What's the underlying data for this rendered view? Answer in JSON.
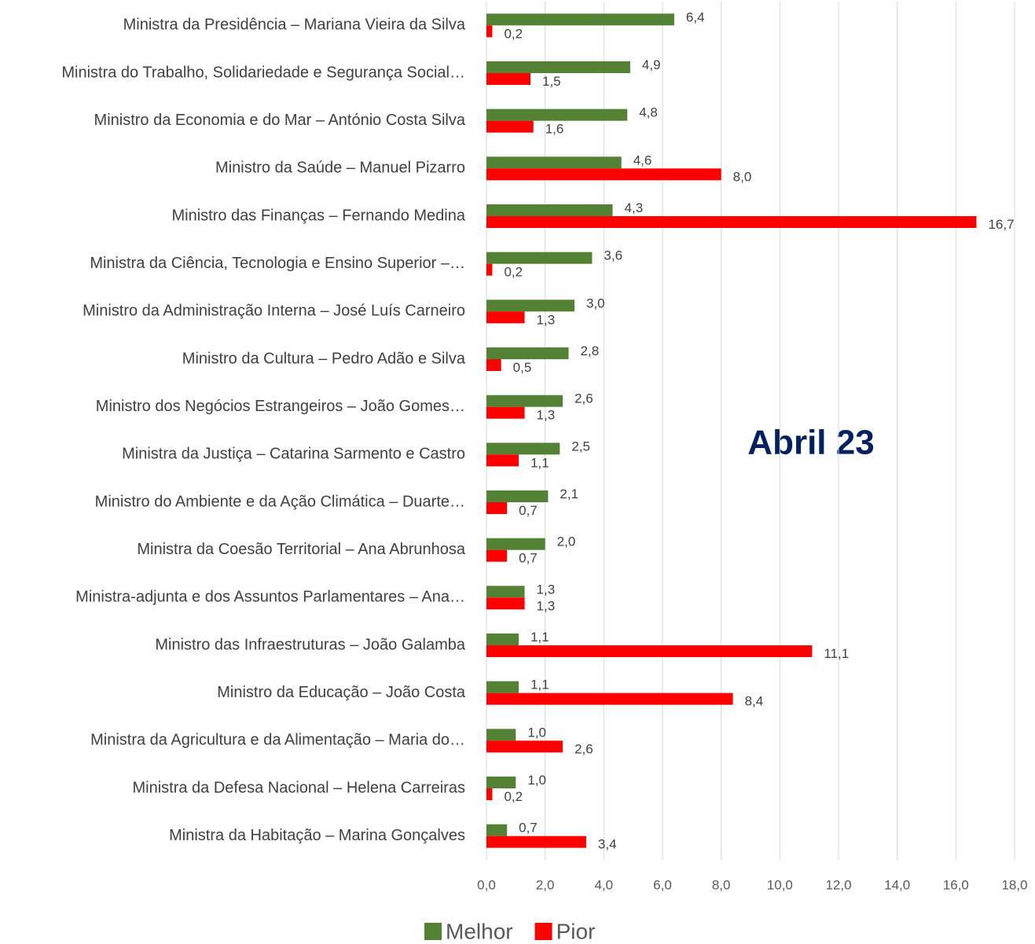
{
  "chart_data": {
    "type": "barh",
    "annotation": "Abril 23",
    "categories": [
      "Ministra da Presidência – Mariana Vieira da Silva",
      "Ministra do Trabalho, Solidariedade e Segurança Social…",
      "Ministro da Economia e do Mar – António Costa Silva",
      "Ministro da Saúde – Manuel Pizarro",
      "Ministro das Finanças – Fernando Medina",
      "Ministra da Ciência, Tecnologia e Ensino Superior –…",
      "Ministro da Administração Interna – José Luís Carneiro",
      "Ministro da Cultura – Pedro Adão e Silva",
      "Ministro dos Negócios Estrangeiros – João Gomes…",
      "Ministra da Justiça – Catarina Sarmento e Castro",
      "Ministro do Ambiente e da Ação Climática – Duarte…",
      "Ministra da Coesão Territorial – Ana Abrunhosa",
      "Ministra-adjunta e dos Assuntos Parlamentares – Ana…",
      "Ministro das Infraestruturas – João Galamba",
      "Ministro da Educação – João Costa",
      "Ministra da Agricultura e da Alimentação – Maria do…",
      "Ministra da Defesa Nacional – Helena Carreiras",
      "Ministra da Habitação – Marina Gonçalves"
    ],
    "series": [
      {
        "name": "Melhor",
        "color": "#548235",
        "values": [
          6.4,
          4.9,
          4.8,
          4.6,
          4.3,
          3.6,
          3.0,
          2.8,
          2.6,
          2.5,
          2.1,
          2.0,
          1.3,
          1.1,
          1.1,
          1.0,
          1.0,
          0.7
        ],
        "value_labels": [
          "6,4",
          "4,9",
          "4,8",
          "4,6",
          "4,3",
          "3,6",
          "3,0",
          "2,8",
          "2,6",
          "2,5",
          "2,1",
          "2,0",
          "1,3",
          "1,1",
          "1,1",
          "1,0",
          "1,0",
          "0,7"
        ]
      },
      {
        "name": "Pior",
        "color": "#ff0000",
        "values": [
          0.2,
          1.5,
          1.6,
          8.0,
          16.7,
          0.2,
          1.3,
          0.5,
          1.3,
          1.1,
          0.7,
          0.7,
          1.3,
          11.1,
          8.4,
          2.6,
          0.2,
          3.4
        ],
        "value_labels": [
          "0,2",
          "1,5",
          "1,6",
          "8,0",
          "16,7",
          "0,2",
          "1,3",
          "0,5",
          "1,3",
          "1,1",
          "0,7",
          "0,7",
          "1,3",
          "11,1",
          "8,4",
          "2,6",
          "0,2",
          "3,4"
        ]
      }
    ],
    "xlim": [
      0,
      18
    ],
    "xticks": [
      {
        "value": 0,
        "label": "0,0"
      },
      {
        "value": 2,
        "label": "2,0"
      },
      {
        "value": 4,
        "label": "4,0"
      },
      {
        "value": 6,
        "label": "6,0"
      },
      {
        "value": 8,
        "label": "8,0"
      },
      {
        "value": 10,
        "label": "10,0"
      },
      {
        "value": 12,
        "label": "12,0"
      },
      {
        "value": 14,
        "label": "14,0"
      },
      {
        "value": 16,
        "label": "16,0"
      },
      {
        "value": 18,
        "label": "18,0"
      }
    ],
    "grid": true,
    "legend": "bottom"
  }
}
